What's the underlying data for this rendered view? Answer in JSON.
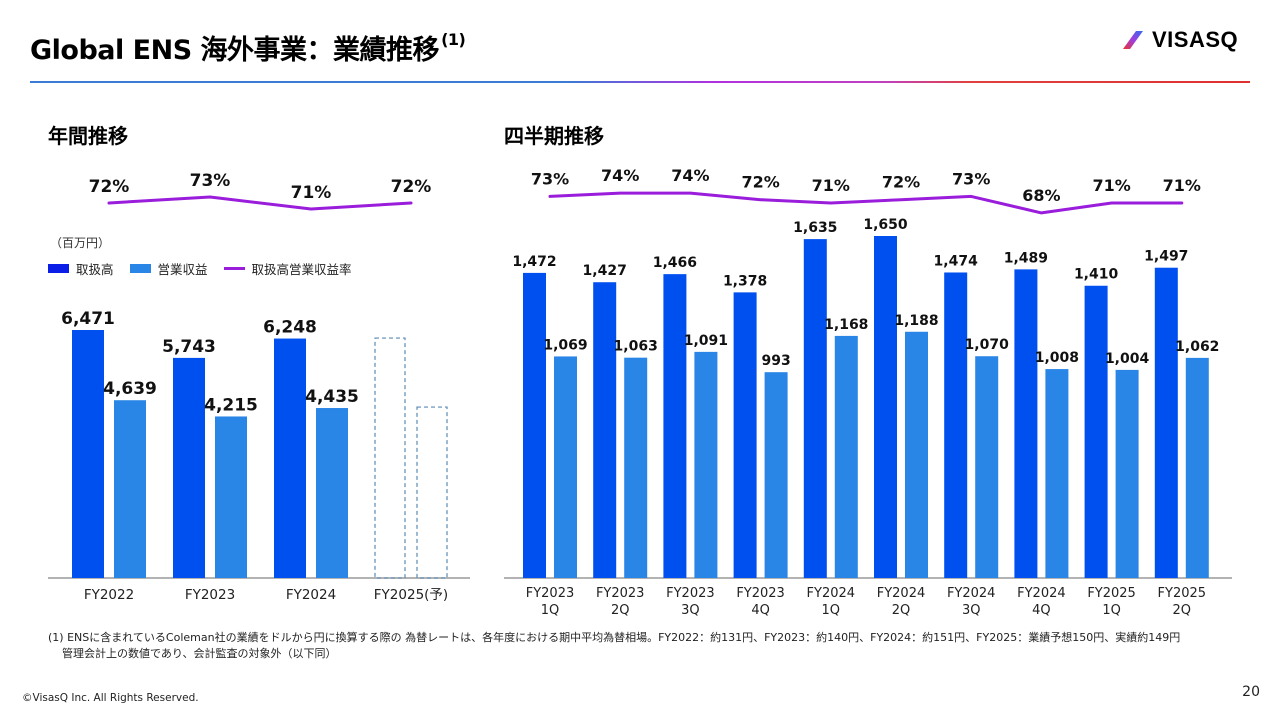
{
  "header": {
    "title": "Global ENS 海外事業：業績推移",
    "title_note": "(1)",
    "logo_text": "VISASQ"
  },
  "colors": {
    "gross_bookings": "#0050f0",
    "operating_revenue": "#2a86e6",
    "rate_line": "#9a1ddc",
    "forecast_border": "#5b8bb5"
  },
  "annual": {
    "section_title": "年間推移",
    "unit": "（百万円）",
    "legend": [
      {
        "label": "取扱高",
        "type": "bar",
        "color": "#0050f0"
      },
      {
        "label": "営業収益",
        "type": "bar",
        "color": "#2a86e6"
      },
      {
        "label": "取扱高営業収益率",
        "type": "line",
        "color": "#9a1ddc"
      }
    ]
  },
  "quarterly": {
    "section_title": "四半期推移"
  },
  "chart_data": [
    {
      "type": "bar",
      "title": "年間推移",
      "unit": "百万円",
      "categories": [
        "FY2022",
        "FY2023",
        "FY2024",
        "FY2025(予)"
      ],
      "series": [
        {
          "name": "取扱高",
          "values": [
            6471,
            5743,
            6248,
            null
          ],
          "labels": [
            "6,471",
            "5,743",
            "6,248",
            ""
          ]
        },
        {
          "name": "営業収益",
          "values": [
            4639,
            4215,
            4435,
            null
          ],
          "labels": [
            "4,639",
            "4,215",
            "4,435",
            ""
          ]
        }
      ],
      "forecast": {
        "category": "FY2025(予)",
        "style": "dashed-outline",
        "values_estimated": [
          6260,
          4460
        ]
      },
      "rate_series": {
        "name": "取扱高営業収益率",
        "type": "line",
        "values": [
          72,
          73,
          71,
          72
        ],
        "labels": [
          "72%",
          "73%",
          "71%",
          "72%"
        ]
      },
      "ylim": [
        0,
        7000
      ],
      "grid": false,
      "legend_position": "top-left"
    },
    {
      "type": "bar",
      "title": "四半期推移",
      "unit": "百万円",
      "categories": [
        "FY2023\n1Q",
        "FY2023\n2Q",
        "FY2023\n3Q",
        "FY2023\n4Q",
        "FY2024\n1Q",
        "FY2024\n2Q",
        "FY2024\n3Q",
        "FY2024\n4Q",
        "FY2025\n1Q",
        "FY2025\n2Q"
      ],
      "category_lines": [
        [
          "FY2023",
          "1Q"
        ],
        [
          "FY2023",
          "2Q"
        ],
        [
          "FY2023",
          "3Q"
        ],
        [
          "FY2023",
          "4Q"
        ],
        [
          "FY2024",
          "1Q"
        ],
        [
          "FY2024",
          "2Q"
        ],
        [
          "FY2024",
          "3Q"
        ],
        [
          "FY2024",
          "4Q"
        ],
        [
          "FY2025",
          "1Q"
        ],
        [
          "FY2025",
          "2Q"
        ]
      ],
      "series": [
        {
          "name": "取扱高",
          "values": [
            1472,
            1427,
            1466,
            1378,
            1635,
            1650,
            1474,
            1489,
            1410,
            1497
          ],
          "labels": [
            "1,472",
            "1,427",
            "1,466",
            "1,378",
            "1,635",
            "1,650",
            "1,474",
            "1,489",
            "1,410",
            "1,497"
          ]
        },
        {
          "name": "営業収益",
          "values": [
            1069,
            1063,
            1091,
            993,
            1168,
            1188,
            1070,
            1008,
            1004,
            1062
          ],
          "labels": [
            "1,069",
            "1,063",
            "1,091",
            "993",
            "1,168",
            "1,188",
            "1,070",
            "1,008",
            "1,004",
            "1,062"
          ]
        }
      ],
      "rate_series": {
        "name": "取扱高営業収益率",
        "type": "line",
        "values": [
          73,
          74,
          74,
          72,
          71,
          72,
          73,
          68,
          71,
          71
        ],
        "labels": [
          "73%",
          "74%",
          "74%",
          "72%",
          "71%",
          "72%",
          "73%",
          "68%",
          "71%",
          "71%"
        ]
      },
      "ylim": [
        0,
        1800
      ],
      "grid": false
    }
  ],
  "footnote": {
    "line1": "(1) ENSに含まれているColeman社の業績をドルから円に換算する際の 為替レートは、各年度における期中平均為替相場。FY2022：約131円、FY2023：約140円、FY2024：約151円、FY2025：業績予想150円、実績約149円",
    "line2": "管理会計上の数値であり、会計監査の対象外（以下同）"
  },
  "footer": {
    "copyright": "©VisasQ Inc. All Rights Reserved.",
    "page_number": "20"
  }
}
